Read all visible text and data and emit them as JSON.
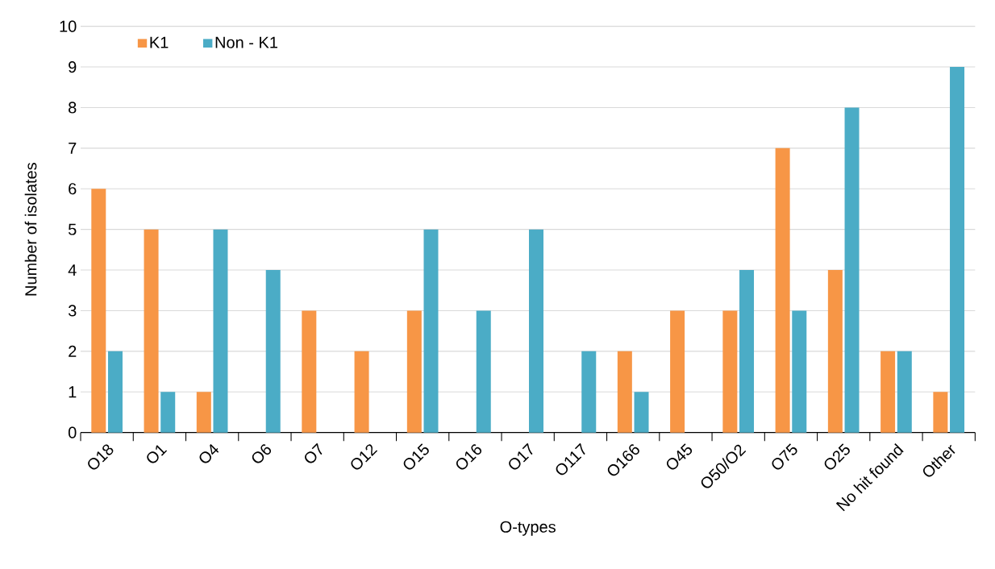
{
  "chart_data": {
    "type": "bar",
    "xlabel": "O-types",
    "ylabel": "Number of isolates",
    "categories": [
      "O18",
      "O1",
      "O4",
      "O6",
      "O7",
      "O12",
      "O15",
      "O16",
      "O17",
      "O117",
      "O166",
      "O45",
      "O50/O2",
      "O75",
      "O25",
      "No hit found",
      "Other"
    ],
    "series": [
      {
        "name": "K1",
        "color": "#f79646",
        "values": [
          6,
          5,
          1,
          0,
          3,
          2,
          3,
          0,
          0,
          0,
          2,
          3,
          3,
          7,
          4,
          2,
          1
        ]
      },
      {
        "name": "Non - K1",
        "color": "#4bacc6",
        "values": [
          2,
          1,
          5,
          4,
          0,
          0,
          5,
          3,
          5,
          2,
          1,
          0,
          4,
          3,
          8,
          2,
          9
        ]
      }
    ],
    "ylim": [
      0,
      10
    ],
    "yticks": [
      0,
      1,
      2,
      3,
      4,
      5,
      6,
      7,
      8,
      9,
      10
    ],
    "grid": "y",
    "legend": "top left"
  }
}
